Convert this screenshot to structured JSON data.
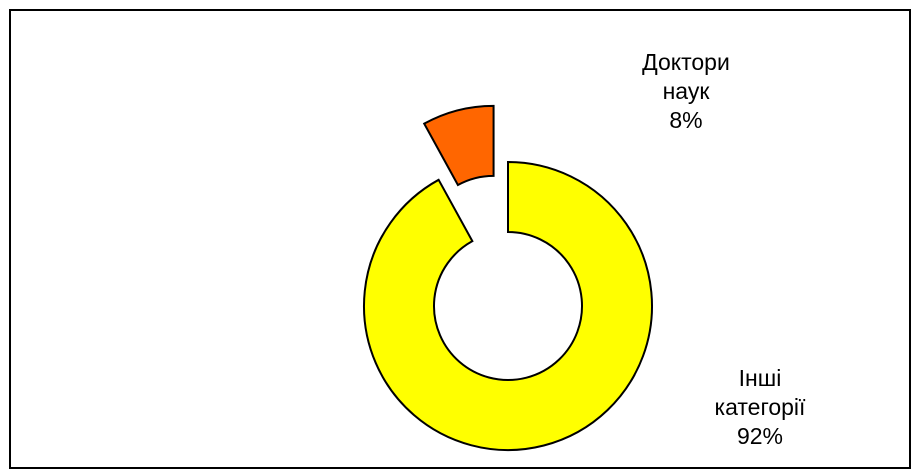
{
  "chart_data": {
    "type": "pie",
    "variant": "doughnut",
    "exploded_slice": "Доктори наук",
    "categories": [
      "Доктори наук",
      "Інші категорії"
    ],
    "values": [
      8,
      92
    ],
    "units": "%",
    "colors": [
      "#FF6600",
      "#FFFF00"
    ],
    "edge_color": "#000000",
    "legend": "none",
    "data_labels": [
      {
        "lines": [
          "Доктори",
          "наук",
          "8%"
        ]
      },
      {
        "lines": [
          "Інші",
          "категорії",
          "92%"
        ]
      }
    ]
  }
}
